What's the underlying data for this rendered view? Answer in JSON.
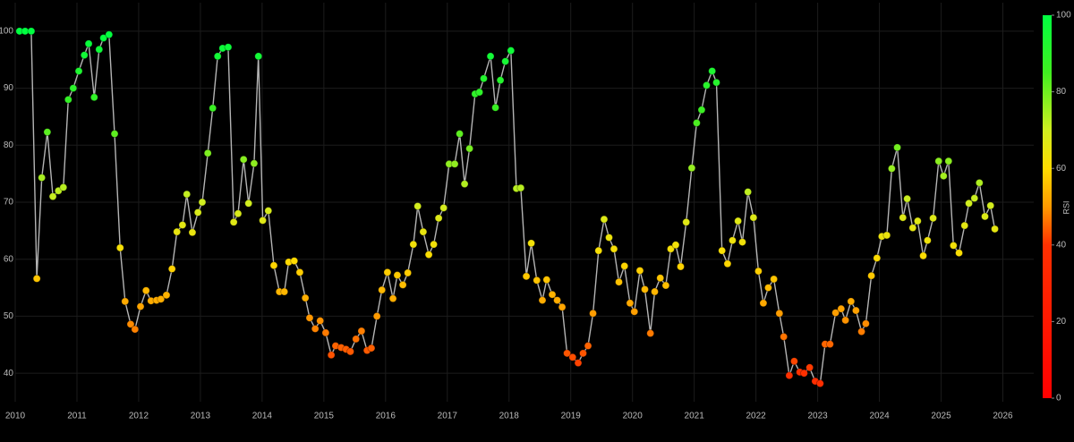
{
  "chart_data": {
    "type": "line",
    "x": [
      2010.07,
      2010.16,
      2010.26,
      2010.35,
      2010.43,
      2010.52,
      2010.61,
      2010.7,
      2010.78,
      2010.86,
      2010.94,
      2011.03,
      2011.12,
      2011.19,
      2011.28,
      2011.36,
      2011.43,
      2011.52,
      2011.61,
      2011.7,
      2011.78,
      2011.87,
      2011.94,
      2012.03,
      2012.12,
      2012.2,
      2012.29,
      2012.36,
      2012.45,
      2012.54,
      2012.62,
      2012.71,
      2012.78,
      2012.87,
      2012.96,
      2013.03,
      2013.12,
      2013.2,
      2013.28,
      2013.36,
      2013.45,
      2013.54,
      2013.61,
      2013.7,
      2013.78,
      2013.87,
      2013.94,
      2014.01,
      2014.1,
      2014.19,
      2014.28,
      2014.36,
      2014.43,
      2014.52,
      2014.61,
      2014.7,
      2014.77,
      2014.86,
      2014.94,
      2015.03,
      2015.12,
      2015.19,
      2015.28,
      2015.36,
      2015.43,
      2015.52,
      2015.61,
      2015.7,
      2015.77,
      2015.86,
      2015.94,
      2016.03,
      2016.12,
      2016.19,
      2016.28,
      2016.36,
      2016.45,
      2016.52,
      2016.61,
      2016.7,
      2016.78,
      2016.86,
      2016.94,
      2017.03,
      2017.12,
      2017.2,
      2017.28,
      2017.36,
      2017.45,
      2017.52,
      2017.59,
      2017.7,
      2017.78,
      2017.86,
      2017.94,
      2018.03,
      2018.12,
      2018.19,
      2018.28,
      2018.36,
      2018.45,
      2018.54,
      2018.61,
      2018.7,
      2018.78,
      2018.86,
      2018.94,
      2019.03,
      2019.12,
      2019.2,
      2019.28,
      2019.36,
      2019.45,
      2019.54,
      2019.62,
      2019.7,
      2019.78,
      2019.87,
      2019.96,
      2020.03,
      2020.12,
      2020.2,
      2020.29,
      2020.36,
      2020.45,
      2020.54,
      2020.62,
      2020.7,
      2020.78,
      2020.87,
      2020.96,
      2021.04,
      2021.12,
      2021.2,
      2021.29,
      2021.36,
      2021.45,
      2021.54,
      2021.62,
      2021.71,
      2021.78,
      2021.87,
      2021.96,
      2022.04,
      2022.12,
      2022.2,
      2022.29,
      2022.38,
      2022.45,
      2022.54,
      2022.62,
      2022.71,
      2022.78,
      2022.87,
      2022.96,
      2023.04,
      2023.12,
      2023.2,
      2023.29,
      2023.38,
      2023.45,
      2023.54,
      2023.62,
      2023.71,
      2023.78,
      2023.87,
      2023.96,
      2024.04,
      2024.12,
      2024.2,
      2024.29,
      2024.38,
      2024.45,
      2024.54,
      2024.62,
      2024.71,
      2024.78,
      2024.87,
      2024.96,
      2025.04,
      2025.12,
      2025.2,
      2025.29,
      2025.38,
      2025.45,
      2025.54,
      2025.62,
      2025.71,
      2025.8,
      2025.87
    ],
    "values": [
      100,
      100,
      100,
      56.6,
      74.3,
      82.3,
      71,
      72,
      72.6,
      88,
      90,
      93,
      95.8,
      97.8,
      88.4,
      96.8,
      98.8,
      99.4,
      82,
      62,
      52.6,
      48.6,
      47.7,
      51.7,
      54.5,
      52.7,
      52.8,
      53,
      53.7,
      58.3,
      64.8,
      66,
      71.4,
      64.7,
      68.2,
      70,
      78.6,
      86.5,
      95.6,
      97,
      97.2,
      66.5,
      68,
      77.5,
      69.8,
      76.8,
      95.6,
      66.8,
      68.5,
      58.9,
      54.3,
      54.3,
      59.5,
      59.7,
      57.7,
      53.2,
      49.7,
      47.8,
      49.2,
      47.1,
      43.2,
      44.8,
      44.5,
      44.2,
      43.8,
      46,
      47.4,
      44,
      44.4,
      50,
      54.6,
      57.7,
      53.1,
      57.2,
      55.5,
      57.6,
      62.6,
      69.3,
      64.8,
      60.8,
      62.6,
      67.2,
      69,
      76.7,
      76.7,
      82,
      73.2,
      79.4,
      89,
      89.3,
      91.7,
      95.6,
      86.6,
      91.4,
      94.7,
      96.6,
      72.4,
      72.5,
      57,
      62.8,
      56.3,
      52.8,
      56.4,
      53.8,
      52.8,
      51.6,
      43.5,
      42.8,
      41.8,
      43.5,
      44.8,
      50.5,
      61.5,
      67,
      63.8,
      61.8,
      56,
      58.8,
      52.3,
      50.8,
      58,
      54.7,
      47,
      54.3,
      56.7,
      55.4,
      61.8,
      62.5,
      58.7,
      66.5,
      76,
      83.9,
      86.2,
      90.5,
      93,
      91,
      61.5,
      59.2,
      63.3,
      66.7,
      63,
      71.8,
      67.3,
      57.9,
      52.3,
      55,
      56.5,
      50.5,
      46.4,
      39.6,
      42.1,
      40.2,
      40,
      41,
      38.6,
      38.2,
      45.1,
      45.1,
      50.6,
      51.3,
      49.3,
      52.6,
      51,
      47.3,
      48.7,
      57.1,
      60.2,
      64,
      64.2,
      75.9,
      79.6,
      67.3,
      70.6,
      65.5,
      66.7,
      60.6,
      63.3,
      67.2,
      77.2,
      74.6,
      77.2,
      62.4,
      61.1,
      65.9,
      69.8,
      70.7,
      73.4,
      67.5,
      69.4,
      65.3
    ],
    "line_color": "#b4b4b4",
    "xlim": [
      2010,
      2026.5
    ],
    "xticks": [
      2010,
      2011,
      2012,
      2013,
      2014,
      2015,
      2016,
      2017,
      2018,
      2019,
      2020,
      2021,
      2022,
      2023,
      2024,
      2025,
      2026
    ],
    "ylim": [
      35,
      105
    ],
    "yticks": [
      40,
      50,
      60,
      70,
      80,
      90,
      100
    ],
    "grid": true,
    "colorbar": {
      "title": "RSI",
      "clim": [
        0,
        100
      ],
      "ticks": [
        0,
        20,
        40,
        60,
        80,
        100
      ],
      "colorscale": [
        [
          0,
          "#ff0000"
        ],
        [
          0.4,
          "#ff3000"
        ],
        [
          0.5,
          "#ff9a00"
        ],
        [
          0.6,
          "#ffdc00"
        ],
        [
          0.7,
          "#d0ee20"
        ],
        [
          0.85,
          "#40ee20"
        ],
        [
          1,
          "#00ff40"
        ]
      ]
    }
  }
}
